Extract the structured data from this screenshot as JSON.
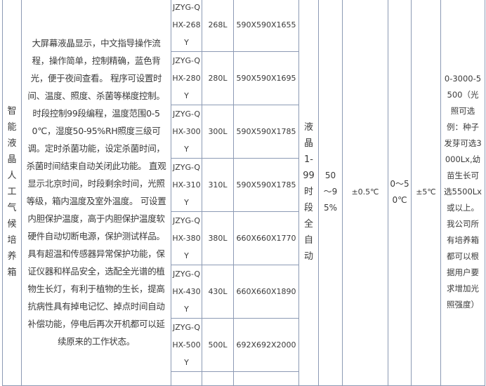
{
  "product": {
    "category": "智能液晶人工气候培养箱",
    "description": "大屏幕液晶显示，中文指导操作流程，操作简单，控制精确，蓝色背光，便于夜间查看。 程序可设置时间、温度、照度、杀菌等梯度控制。 时段控制99段编程，温度范围0-50℃，湿度50-95%RH照度三级可调。定时杀菌功能，设定杀菌时间，杀菌时间结束自动关闭此功能。 直观显示北京时间，时段剩余时间，光照等级，箱内温度及室外温度。 可设置内胆保护温度，高于内胆保护温度软硬件自动切断电源，保护测试样品。具有超温和传感器异常保护功能，保证仪器和样品安全，选配全光谱的植物生长灯，有利于植物的生长，提高抗病性具有掉电记忆、掉点时间自动补偿功能，停电后再次开机都可以延续原来的工作状态。",
    "control": "液晶1-99时段全自动",
    "humidity": "50～95%",
    "temp_accuracy": "±0.5℃",
    "temp_range": "0～50℃",
    "temp_uniformity": "±5℃",
    "light": "0-3000-5500（光照可选例：种子发芽可选3000Lx,幼苗生长可选5500Lx或以上。我公司所有培养箱都可以根据用户要求增加光照强度）"
  },
  "models": [
    {
      "model": "JZYG-QHX-268Y",
      "volume": "268L",
      "dimensions": "590X590X1655"
    },
    {
      "model": "JZYG-QHX-280Y",
      "volume": "280L",
      "dimensions": "590X590X1695"
    },
    {
      "model": "JZYG-QHX-300Y",
      "volume": "300L",
      "dimensions": "590X590X1785"
    },
    {
      "model": "JZYG-QHX-310Y",
      "volume": "310L",
      "dimensions": "590X590X1785"
    },
    {
      "model": "JZYG-QHX-380Y",
      "volume": "380L",
      "dimensions": "660X660X1770"
    },
    {
      "model": "JZYG-QHX-430Y",
      "volume": "430L",
      "dimensions": "660X660X1890"
    },
    {
      "model": "JZYG-QHX-500Y",
      "volume": "500L",
      "dimensions": "692X692X2000"
    }
  ]
}
